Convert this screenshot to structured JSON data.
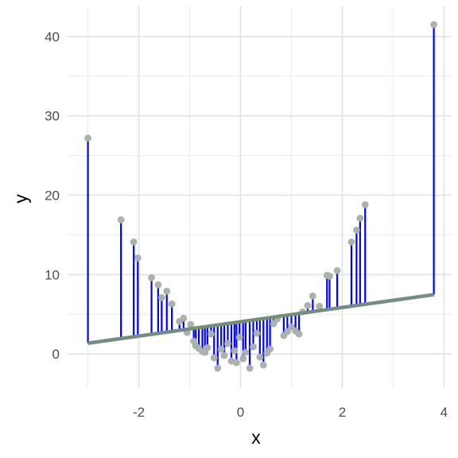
{
  "chart_data": {
    "type": "scatter",
    "title": "",
    "xlabel": "x",
    "ylabel": "y",
    "xlim": [
      -3.4,
      4.15
    ],
    "ylim": [
      -4.3,
      43.8
    ],
    "xticks": [
      -2,
      0,
      2,
      4
    ],
    "xtick_labels": [
      "-2",
      "0",
      "2",
      "4"
    ],
    "yticks": [
      0,
      10,
      20,
      30,
      40
    ],
    "ytick_labels": [
      "0",
      "10",
      "20",
      "30",
      "40"
    ],
    "grid": true,
    "legend": "none",
    "fit_line": {
      "intercept": 4.05,
      "slope": 0.9,
      "x_range": [
        -3.0,
        3.8
      ]
    },
    "points": {
      "x": [
        -3.0,
        -2.35,
        -2.1,
        -2.02,
        -1.75,
        -1.62,
        -1.55,
        -1.45,
        -1.35,
        -1.2,
        -1.12,
        -1.05,
        -0.98,
        -0.92,
        -0.88,
        -0.82,
        -0.75,
        -0.7,
        -0.65,
        -0.58,
        -0.52,
        -0.45,
        -0.38,
        -0.32,
        -0.25,
        -0.18,
        -0.12,
        -0.08,
        -0.02,
        0.05,
        0.1,
        0.18,
        0.25,
        0.32,
        0.38,
        0.45,
        0.52,
        0.58,
        0.65,
        0.72,
        0.85,
        0.92,
        1.0,
        1.08,
        1.15,
        1.22,
        1.32,
        1.42,
        1.55,
        1.7,
        1.75,
        1.9,
        2.18,
        2.28,
        2.35,
        2.45,
        3.8
      ],
      "y": [
        27.2,
        16.9,
        14.1,
        12.1,
        9.6,
        8.7,
        7.1,
        7.9,
        6.3,
        4.1,
        4.5,
        2.7,
        3.7,
        1.6,
        1.0,
        0.7,
        0.3,
        0.2,
        0.8,
        2.5,
        -0.5,
        -1.8,
        0.6,
        -0.2,
        1.3,
        -0.9,
        0.4,
        -1.1,
        2.1,
        -0.6,
        0.2,
        -1.8,
        0.9,
        2.6,
        -0.4,
        -1.4,
        0.1,
        0.6,
        3.8,
        4.4,
        2.3,
        2.8,
        3.4,
        2.9,
        2.5,
        5.3,
        6.1,
        7.3,
        6.0,
        9.9,
        9.8,
        10.5,
        14.1,
        15.6,
        17.1,
        18.8,
        41.5
      ]
    }
  }
}
